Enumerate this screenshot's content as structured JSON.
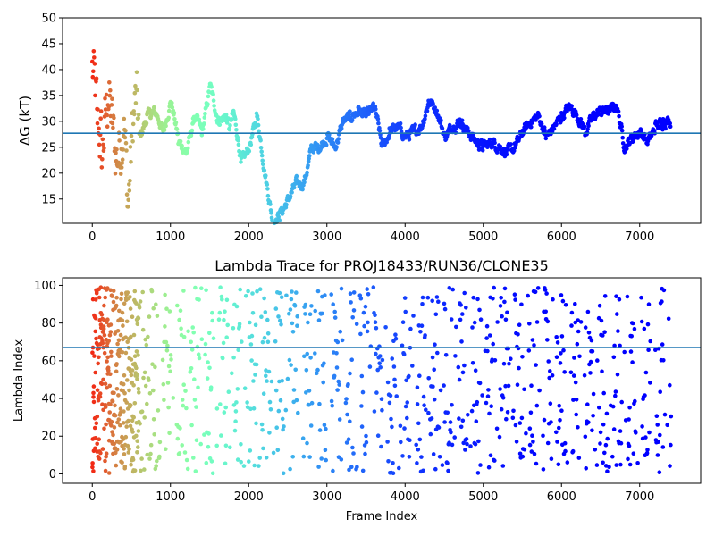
{
  "chart_data": [
    {
      "type": "scatter",
      "title": "",
      "xlabel": "",
      "ylabel": "ΔG (kT)",
      "xlim": [
        -380,
        7780
      ],
      "ylim": [
        10.3,
        50
      ],
      "xticks": [
        0,
        1000,
        2000,
        3000,
        4000,
        5000,
        6000,
        7000
      ],
      "yticks": [
        15,
        20,
        25,
        30,
        35,
        40,
        45,
        50
      ],
      "hline": 27.7,
      "hline_color": "#1f77b4",
      "colormap": "rainbow",
      "series": [
        {
          "x": [
            0,
            60,
            120,
            200,
            300,
            400,
            450,
            500,
            550,
            600,
            700,
            800,
            900,
            1000,
            1100,
            1200,
            1300,
            1400,
            1500,
            1600,
            1700,
            1750,
            1800,
            1900,
            2000,
            2100,
            2200,
            2300,
            2400,
            2500,
            2600,
            2700,
            2800,
            2900,
            3000,
            3100,
            3200,
            3300,
            3400,
            3500,
            3600,
            3700,
            3800,
            3900,
            4000,
            4100,
            4200,
            4300,
            4400,
            4500,
            4600,
            4700,
            4800,
            4900,
            5000,
            5100,
            5200,
            5300,
            5400,
            5500,
            5600,
            5700,
            5800,
            5900,
            6000,
            6100,
            6200,
            6300,
            6400,
            6500,
            6600,
            6700,
            6800,
            6900,
            7000,
            7100,
            7200,
            7300,
            7400
          ],
          "y": [
            40,
            30,
            25,
            35,
            22,
            30,
            13,
            27,
            35,
            27,
            31,
            32,
            28,
            34,
            26,
            24,
            31,
            28,
            37,
            30,
            31,
            29,
            32,
            22,
            25,
            31,
            20,
            10.5,
            12,
            15,
            18,
            18,
            25,
            25,
            27,
            25,
            30,
            31,
            32,
            31,
            33,
            25,
            28,
            29,
            27,
            28,
            29,
            34,
            32,
            27,
            29,
            30,
            28,
            26,
            25,
            26,
            25,
            24,
            25,
            28,
            30,
            31,
            27,
            29,
            31,
            33,
            31,
            28,
            31,
            32,
            32,
            33,
            25,
            27,
            28,
            26,
            29,
            30,
            30
          ]
        }
      ]
    },
    {
      "type": "scatter",
      "title": "Lambda Trace for PROJ18433/RUN36/CLONE35",
      "xlabel": "Frame Index",
      "ylabel": "Lambda Index",
      "xlim": [
        -380,
        7780
      ],
      "ylim": [
        -5,
        104
      ],
      "xticks": [
        0,
        1000,
        2000,
        3000,
        4000,
        5000,
        6000,
        7000
      ],
      "yticks": [
        0,
        20,
        40,
        60,
        80,
        100
      ],
      "hline": 67,
      "hline_color": "#1f77b4",
      "colormap": "rainbow",
      "series": [
        {
          "x_range": [
            0,
            7400
          ],
          "y_range": [
            0,
            99
          ]
        }
      ]
    }
  ]
}
